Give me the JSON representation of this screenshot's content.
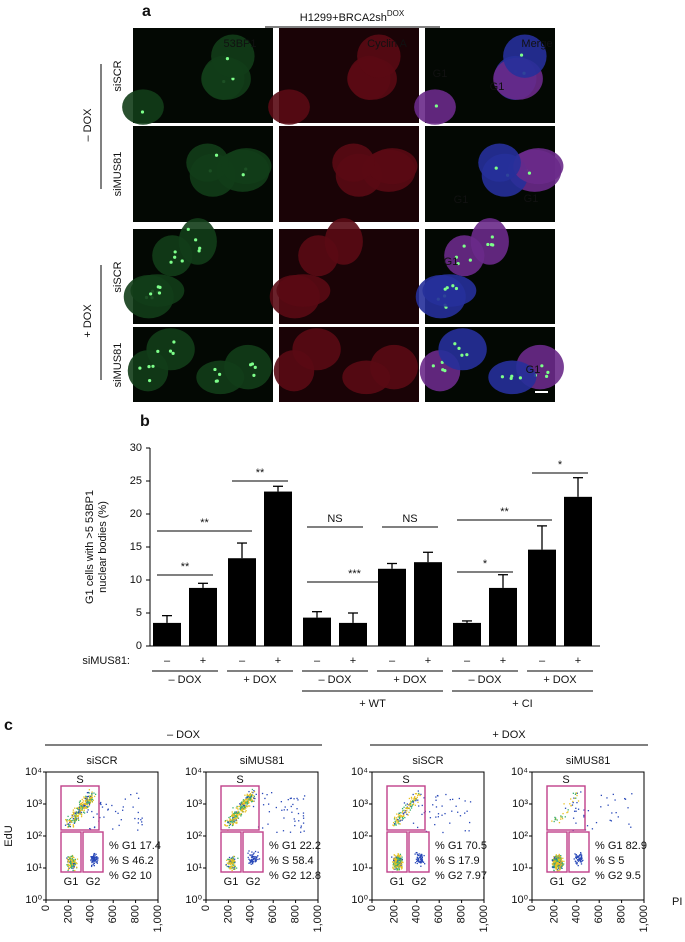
{
  "panel_a": {
    "label": "a",
    "header": "H1299+BRCA2sh",
    "header_sup": "DOX",
    "columns": [
      "53BP1",
      "Cyclin A",
      "Merge"
    ],
    "groups": [
      {
        "label": "– DOX",
        "rows": [
          "siSCR",
          "siMUS81"
        ]
      },
      {
        "label": "+ DOX",
        "rows": [
          "siSCR",
          "siMUS81"
        ]
      }
    ],
    "annotations": [
      "G1",
      "G1",
      "G1",
      "G1",
      "G1",
      "G1"
    ]
  },
  "chart_data": {
    "type": "bar",
    "panel_label": "b",
    "ylabel": [
      "G1 cells with >5 53BP1",
      "nuclear bodies (%)"
    ],
    "row_label": "siMUS81:",
    "categories": [
      "–",
      "+",
      "–",
      "+",
      "–",
      "+",
      "–",
      "+",
      "–",
      "+",
      "–",
      "+"
    ],
    "values": [
      3.5,
      8.8,
      13.3,
      23.4,
      4.3,
      3.5,
      11.7,
      12.7,
      3.5,
      8.8,
      14.6,
      22.6
    ],
    "errors": [
      1.1,
      0.7,
      2.3,
      0.8,
      0.9,
      1.5,
      0.8,
      1.5,
      0.3,
      2.0,
      3.6,
      2.9
    ],
    "color": "#000000",
    "ylim": [
      0,
      30
    ],
    "yticks": [
      0,
      5,
      10,
      15,
      20,
      25,
      30
    ],
    "group_labels": [
      "– DOX",
      "+ DOX",
      "– DOX",
      "+ DOX",
      "– DOX",
      "+ DOX"
    ],
    "supergroup_labels": [
      "+ WT",
      "+ CI"
    ],
    "significance": [
      "**",
      "**",
      "**",
      "NS",
      "***",
      "NS",
      "*",
      "**",
      "*"
    ]
  },
  "panel_c": {
    "label": "c",
    "conditions": [
      "– DOX",
      "+ DOX"
    ],
    "plots": [
      {
        "title": "siSCR",
        "stats": [
          "% G1 17.4",
          "% S 46.2",
          "% G2 10"
        ]
      },
      {
        "title": "siMUS81",
        "stats": [
          "% G1 22.2",
          "% S 58.4",
          "% G2 12.8"
        ]
      },
      {
        "title": "siSCR",
        "stats": [
          "% G1 70.5",
          "% S 17.9",
          "% G2 7.97"
        ]
      },
      {
        "title": "siMUS81",
        "stats": [
          "% G1 82.9",
          "% S 5",
          "% G2 9.5"
        ]
      }
    ],
    "gates": [
      "S",
      "G1",
      "G2"
    ],
    "ylabel": "EdU",
    "xlabel": "PI",
    "xlim": [
      0,
      1000
    ],
    "ylim": [
      1,
      10000
    ],
    "ylog": true,
    "xticks": [
      0,
      200,
      400,
      600,
      800,
      {
        "value": 1000,
        "label": "1,000"
      }
    ],
    "yticks": [
      {
        "value": 1,
        "label": "10⁰"
      },
      {
        "value": 10,
        "label": "10¹"
      },
      {
        "value": 100,
        "label": "10²"
      },
      {
        "value": 1000,
        "label": "10³"
      },
      {
        "value": 10000,
        "label": "10⁴"
      }
    ]
  }
}
